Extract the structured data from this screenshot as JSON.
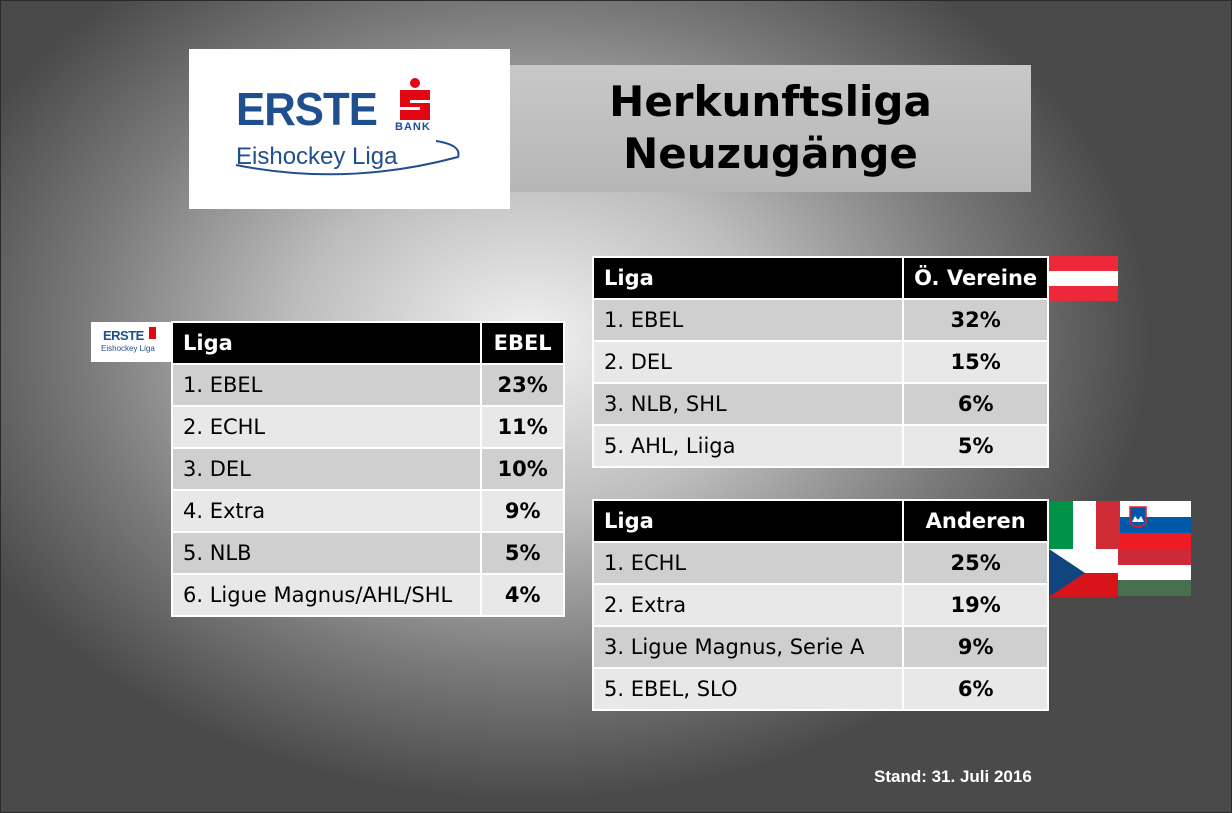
{
  "logo": {
    "brand": "ERSTE",
    "bank": "BANK",
    "subtitle": "Eishockey Liga"
  },
  "title": {
    "line1": "Herkunftsliga",
    "line2": "Neuzugänge"
  },
  "table_ebel": {
    "headers": [
      "Liga",
      "EBEL"
    ],
    "rows": [
      [
        "1. EBEL",
        "23%"
      ],
      [
        "2. ECHL",
        "11%"
      ],
      [
        "3. DEL",
        "10%"
      ],
      [
        "4. Extra",
        "9%"
      ],
      [
        "5. NLB",
        "5%"
      ],
      [
        "6. Ligue Magnus/AHL/SHL",
        "4%"
      ]
    ]
  },
  "table_oe": {
    "headers": [
      "Liga",
      "Ö. Vereine"
    ],
    "rows": [
      [
        "1. EBEL",
        "32%"
      ],
      [
        "2. DEL",
        "15%"
      ],
      [
        "3. NLB, SHL",
        "6%"
      ],
      [
        "5. AHL, Liiga",
        "5%"
      ]
    ]
  },
  "table_andere": {
    "headers": [
      "Liga",
      "Anderen"
    ],
    "rows": [
      [
        "1. ECHL",
        "25%"
      ],
      [
        "2. Extra",
        "19%"
      ],
      [
        "3. Ligue Magnus, Serie A",
        "9%"
      ],
      [
        "5. EBEL, SLO",
        "6%"
      ]
    ]
  },
  "flags": [
    "austria-flag",
    "italy-flag",
    "slovenia-flag",
    "czech-flag",
    "hungary-flag"
  ],
  "footer": {
    "stand": "Stand: 31. Juli 2016"
  },
  "colors": {
    "brand_blue": "#1f4f8f",
    "brand_red": "#e30613",
    "header_bg": "#000000"
  }
}
